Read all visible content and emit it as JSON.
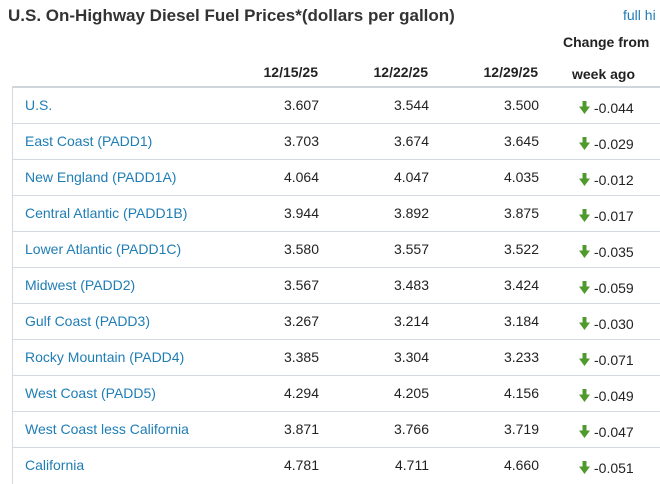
{
  "title": "U.S. On-Highway Diesel Fuel Prices*(dollars per gallon)",
  "full_link": "full hi",
  "headers": {
    "dates": [
      "12/15/25",
      "12/22/25",
      "12/29/25"
    ],
    "change_line1": "Change from",
    "change_line2": "week ago"
  },
  "colors": {
    "link": "#1f7db5",
    "down_arrow": "#4f9a2d"
  },
  "rows": [
    {
      "name": "U.S.",
      "v1": "3.607",
      "v2": "3.544",
      "v3": "3.500",
      "change": "-0.044",
      "direction": "down"
    },
    {
      "name": "East Coast (PADD1)",
      "v1": "3.703",
      "v2": "3.674",
      "v3": "3.645",
      "change": "-0.029",
      "direction": "down"
    },
    {
      "name": "New England (PADD1A)",
      "v1": "4.064",
      "v2": "4.047",
      "v3": "4.035",
      "change": "-0.012",
      "direction": "down"
    },
    {
      "name": "Central Atlantic (PADD1B)",
      "v1": "3.944",
      "v2": "3.892",
      "v3": "3.875",
      "change": "-0.017",
      "direction": "down"
    },
    {
      "name": "Lower Atlantic (PADD1C)",
      "v1": "3.580",
      "v2": "3.557",
      "v3": "3.522",
      "change": "-0.035",
      "direction": "down"
    },
    {
      "name": "Midwest (PADD2)",
      "v1": "3.567",
      "v2": "3.483",
      "v3": "3.424",
      "change": "-0.059",
      "direction": "down"
    },
    {
      "name": "Gulf Coast (PADD3)",
      "v1": "3.267",
      "v2": "3.214",
      "v3": "3.184",
      "change": "-0.030",
      "direction": "down"
    },
    {
      "name": "Rocky Mountain (PADD4)",
      "v1": "3.385",
      "v2": "3.304",
      "v3": "3.233",
      "change": "-0.071",
      "direction": "down"
    },
    {
      "name": "West Coast (PADD5)",
      "v1": "4.294",
      "v2": "4.205",
      "v3": "4.156",
      "change": "-0.049",
      "direction": "down"
    },
    {
      "name": "West Coast less California",
      "v1": "3.871",
      "v2": "3.766",
      "v3": "3.719",
      "change": "-0.047",
      "direction": "down"
    },
    {
      "name": "California",
      "v1": "4.781",
      "v2": "4.711",
      "v3": "4.660",
      "change": "-0.051",
      "direction": "down"
    }
  ]
}
